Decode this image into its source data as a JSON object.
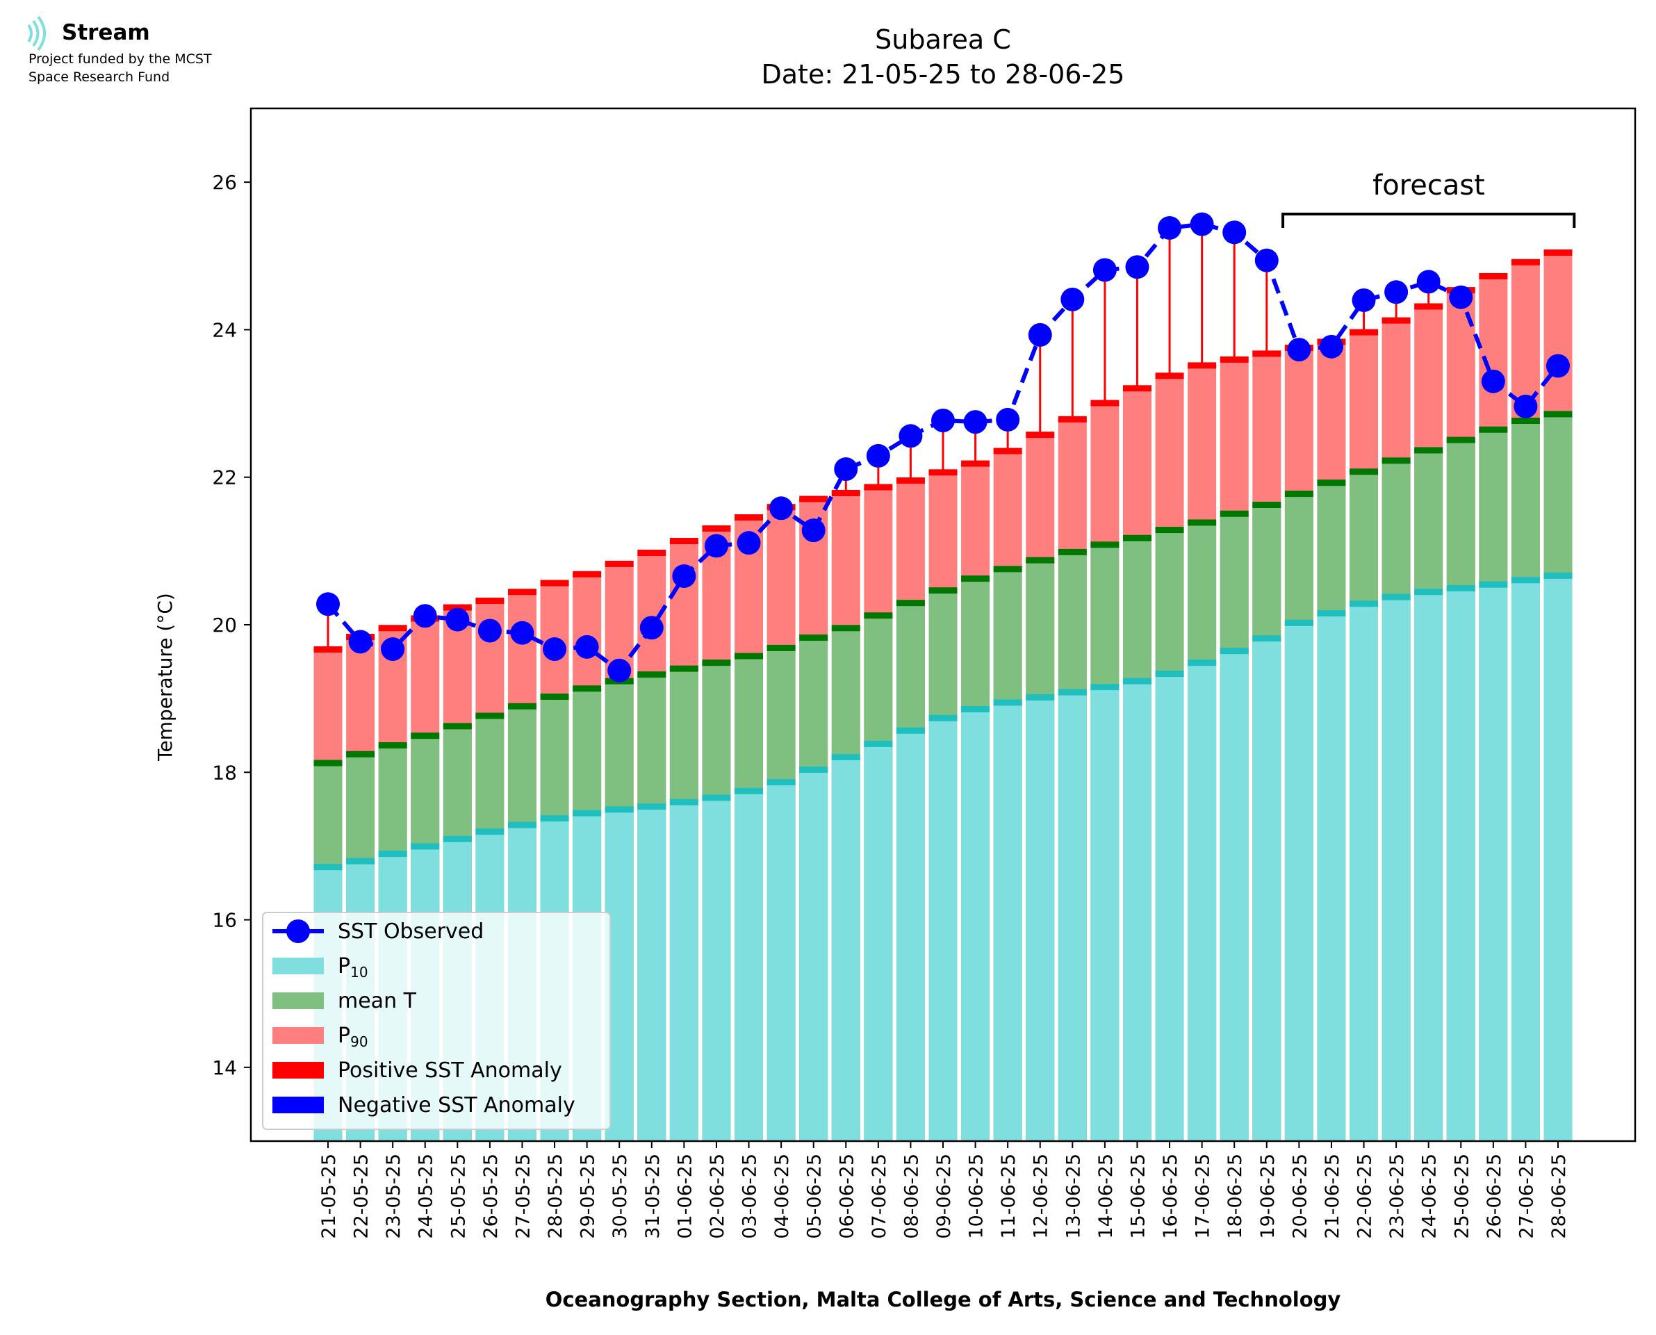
{
  "logo": {
    "name": "Stream",
    "line1": "Project funded by the MCST",
    "line2": "Space Research Fund"
  },
  "chart_data": {
    "type": "bar",
    "title": "Subarea C",
    "subtitle": "Date: 21-05-25 to 28-06-25",
    "xlabel": "Oceanography Section, Malta College of Arts, Science and Technology",
    "ylabel": "Temperature (°C)",
    "ylim": [
      13,
      27
    ],
    "yticks": [
      14,
      16,
      18,
      20,
      22,
      24,
      26
    ],
    "grid": false,
    "legend_position": "lower-left",
    "forecast_label": "forecast",
    "forecast_range": [
      "20-06-25",
      "28-06-25"
    ],
    "categories": [
      "21-05-25",
      "22-05-25",
      "23-05-25",
      "24-05-25",
      "25-05-25",
      "26-05-25",
      "27-05-25",
      "28-05-25",
      "29-05-25",
      "30-05-25",
      "31-05-25",
      "01-06-25",
      "02-06-25",
      "03-06-25",
      "04-06-25",
      "05-06-25",
      "06-06-25",
      "07-06-25",
      "08-06-25",
      "09-06-25",
      "10-06-25",
      "11-06-25",
      "12-06-25",
      "13-06-25",
      "14-06-25",
      "15-06-25",
      "16-06-25",
      "17-06-25",
      "18-06-25",
      "19-06-25",
      "20-06-25",
      "21-06-25",
      "22-06-25",
      "23-06-25",
      "24-06-25",
      "25-06-25",
      "26-06-25",
      "27-06-25",
      "28-06-25"
    ],
    "series": [
      {
        "name": "SST Observed",
        "type": "line",
        "color": "#0000ff",
        "values": [
          20.28,
          19.77,
          19.67,
          20.12,
          20.07,
          19.92,
          19.89,
          19.67,
          19.7,
          19.38,
          19.96,
          20.66,
          21.07,
          21.11,
          21.58,
          21.28,
          22.11,
          22.29,
          22.56,
          22.77,
          22.75,
          22.78,
          23.93,
          24.41,
          24.81,
          24.85,
          25.38,
          25.43,
          25.32,
          24.94,
          23.73,
          23.77,
          24.4,
          24.51,
          24.65,
          24.44,
          23.3,
          22.96,
          23.51
        ]
      },
      {
        "name": "P10",
        "type": "bar",
        "color": "#7fdfdf",
        "edge_color": "#1fbfbf",
        "values": [
          16.72,
          16.8,
          16.9,
          17.0,
          17.1,
          17.2,
          17.29,
          17.38,
          17.45,
          17.5,
          17.54,
          17.6,
          17.66,
          17.75,
          17.87,
          18.04,
          18.21,
          18.39,
          18.57,
          18.74,
          18.86,
          18.95,
          19.02,
          19.09,
          19.16,
          19.24,
          19.34,
          19.49,
          19.65,
          19.82,
          20.03,
          20.16,
          20.29,
          20.38,
          20.45,
          20.5,
          20.55,
          20.61,
          20.67
        ]
      },
      {
        "name": "mean T",
        "type": "bar",
        "color": "#7fbf7f",
        "edge_color": "#007800",
        "values": [
          18.13,
          18.25,
          18.37,
          18.5,
          18.63,
          18.77,
          18.9,
          19.03,
          19.14,
          19.24,
          19.33,
          19.41,
          19.49,
          19.58,
          19.69,
          19.83,
          19.96,
          20.13,
          20.3,
          20.47,
          20.63,
          20.76,
          20.88,
          20.99,
          21.09,
          21.18,
          21.29,
          21.39,
          21.51,
          21.63,
          21.78,
          21.93,
          22.08,
          22.23,
          22.37,
          22.51,
          22.65,
          22.77,
          22.86
        ]
      },
      {
        "name": "P90",
        "type": "bar",
        "color": "#ff7f7f",
        "edge_color": "#ff0000",
        "values": [
          19.67,
          19.84,
          19.96,
          20.09,
          20.24,
          20.33,
          20.45,
          20.57,
          20.69,
          20.83,
          20.98,
          21.14,
          21.31,
          21.46,
          21.6,
          21.71,
          21.79,
          21.87,
          21.96,
          22.07,
          22.19,
          22.36,
          22.58,
          22.79,
          23.01,
          23.21,
          23.38,
          23.52,
          23.6,
          23.68,
          23.76,
          23.84,
          23.97,
          24.13,
          24.32,
          24.54,
          24.73,
          24.92,
          25.05
        ]
      },
      {
        "name": "Positive SST Anomaly",
        "type": "anomaly",
        "color": "#ff0000"
      },
      {
        "name": "Negative SST Anomaly",
        "type": "anomaly",
        "color": "#0000ff"
      }
    ]
  }
}
